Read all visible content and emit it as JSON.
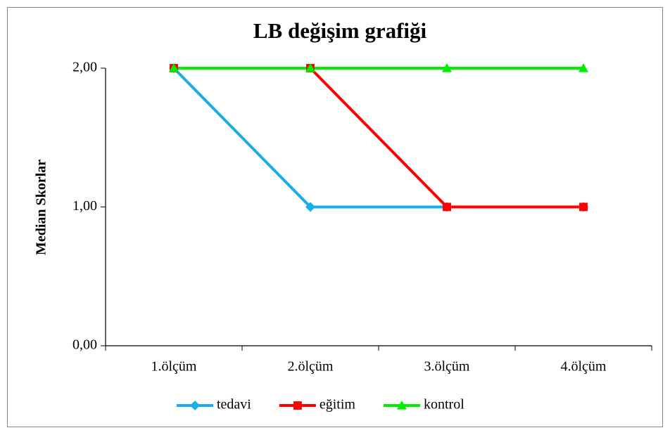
{
  "chart_data": {
    "type": "line",
    "title": "LB değişim grafiği",
    "y_label": "Median Skorlar",
    "categories": [
      "1.ölçüm",
      "2.ölçüm",
      "3.ölçüm",
      "4.ölçüm"
    ],
    "series": [
      {
        "name": "tedavi",
        "color": "#1aaee8",
        "marker": "diamond",
        "values": [
          2,
          1,
          1,
          1
        ]
      },
      {
        "name": "eğitim",
        "color": "#ff0000",
        "marker": "square",
        "values": [
          2,
          2,
          1,
          1
        ]
      },
      {
        "name": "kontrol",
        "color": "#00ee00",
        "marker": "triangle",
        "values": [
          2,
          2,
          2,
          2
        ]
      }
    ],
    "ylim": [
      0,
      2
    ],
    "yticks": [
      {
        "value": 0,
        "label": "0,00"
      },
      {
        "value": 1,
        "label": "1,00"
      },
      {
        "value": 2,
        "label": "2,00"
      }
    ],
    "grid": false,
    "legend": "bottom"
  }
}
